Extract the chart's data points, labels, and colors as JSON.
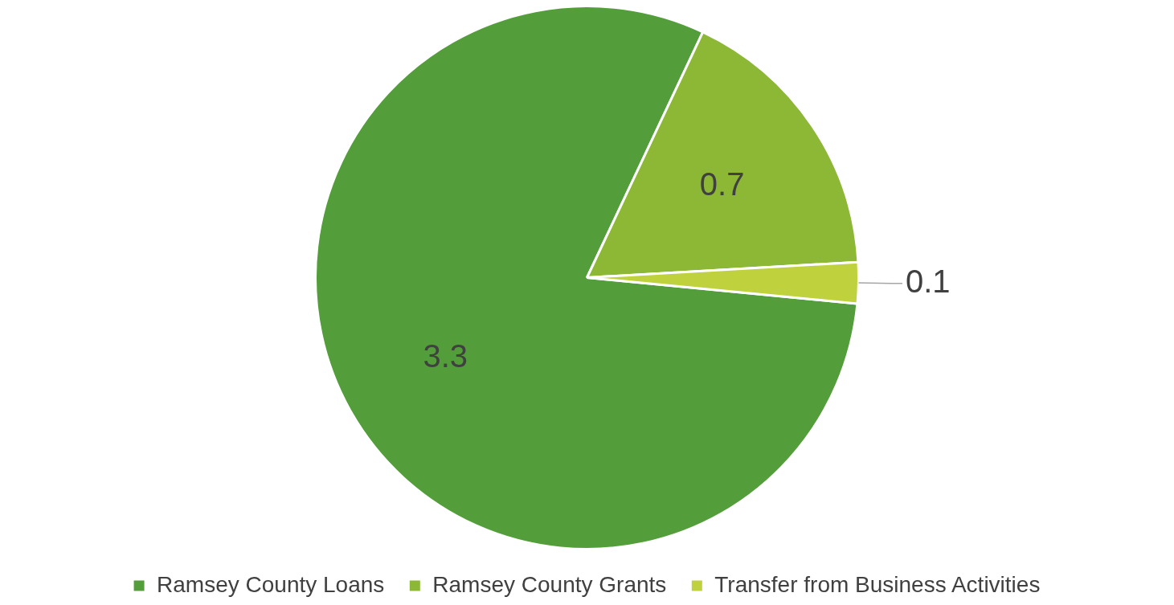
{
  "chart_data": {
    "type": "pie",
    "categories": [
      "Ramsey County Loans",
      "Ramsey County Grants",
      "Transfer from Business Activities"
    ],
    "values": [
      3.3,
      0.7,
      0.1
    ],
    "colors": [
      "#539e3a",
      "#8cb835",
      "#bfd13d"
    ],
    "data_labels": true,
    "legend": "bottom"
  }
}
